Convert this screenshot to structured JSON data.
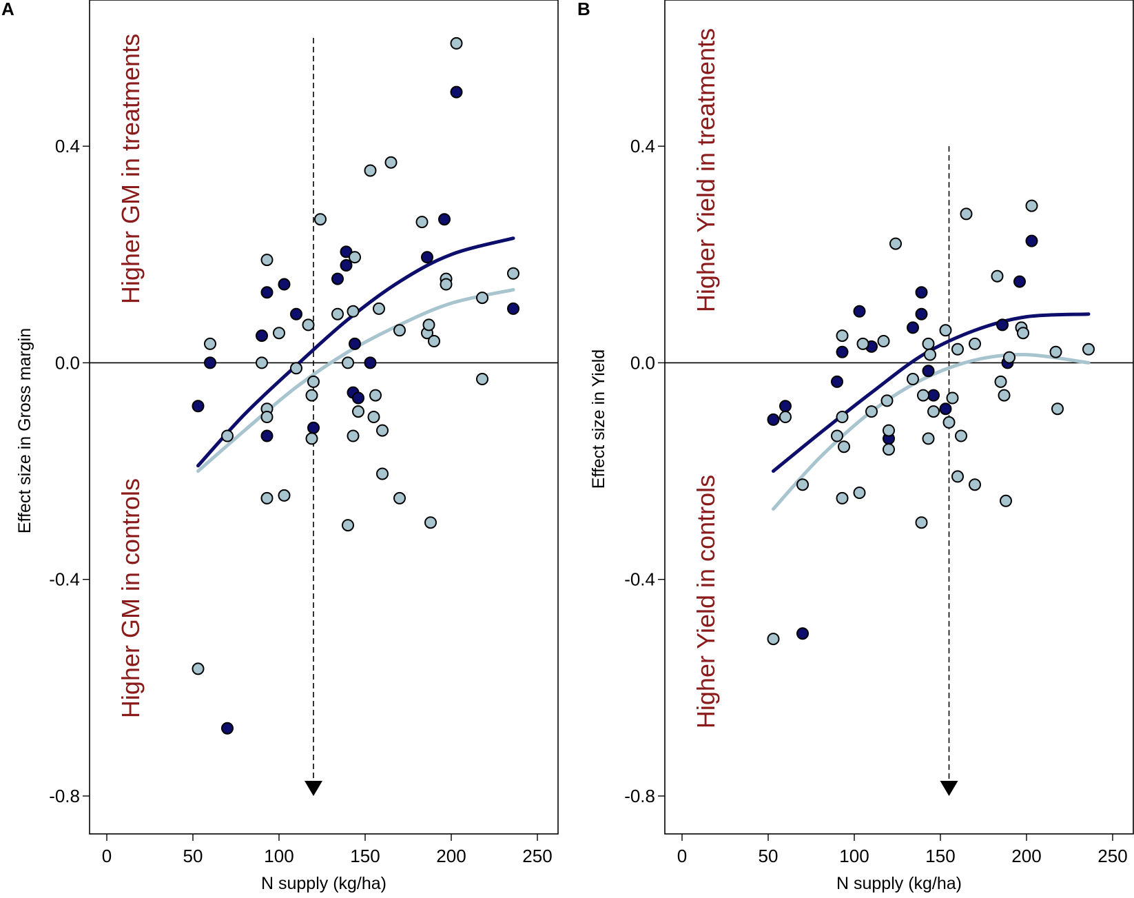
{
  "colors": {
    "dark": "#0d0d6b",
    "light": "#a7c4cf",
    "annotation": "#8b1a1a",
    "axis": "#000000"
  },
  "chart_data": [
    {
      "type": "scatter",
      "panel_label": "A",
      "xlabel": "N supply (kg/ha)",
      "ylabel": "Effect size in Gross margin",
      "xlim": [
        -10,
        262
      ],
      "ylim": [
        -0.87,
        0.67
      ],
      "x_ticks": [
        0,
        50,
        100,
        150,
        200,
        250
      ],
      "y_ticks": [
        0.4,
        0.0,
        -0.4,
        -0.8
      ],
      "y_tick_labels": [
        "0.4",
        "0.0",
        "-0.4",
        "-0.8"
      ],
      "zero_line": 0,
      "annotations": {
        "upper": "Higher GM in treatments",
        "lower": "Higher GM in controls"
      },
      "optimum_x": 120,
      "optimum_line_top": 0.6,
      "series": [
        {
          "name": "dark",
          "points": [
            [
              53,
              -0.08
            ],
            [
              60,
              0.0
            ],
            [
              70,
              -0.675
            ],
            [
              90,
              0.05
            ],
            [
              93,
              0.13
            ],
            [
              93,
              -0.135
            ],
            [
              103,
              0.145
            ],
            [
              110,
              0.09
            ],
            [
              120,
              -0.12
            ],
            [
              134,
              0.155
            ],
            [
              139,
              0.205
            ],
            [
              139,
              0.18
            ],
            [
              143,
              -0.055
            ],
            [
              144,
              0.035
            ],
            [
              146,
              -0.065
            ],
            [
              153,
              0.0
            ],
            [
              186,
              0.195
            ],
            [
              196,
              0.265
            ],
            [
              203,
              0.5
            ],
            [
              236,
              0.1
            ]
          ],
          "fit": [
            [
              53,
              -0.19
            ],
            [
              80,
              -0.095
            ],
            [
              110,
              -0.005
            ],
            [
              140,
              0.08
            ],
            [
              170,
              0.15
            ],
            [
              200,
              0.2
            ],
            [
              236,
              0.23
            ]
          ]
        },
        {
          "name": "light",
          "points": [
            [
              53,
              -0.565
            ],
            [
              60,
              0.035
            ],
            [
              70,
              -0.135
            ],
            [
              90,
              0.0
            ],
            [
              93,
              -0.085
            ],
            [
              93,
              -0.1
            ],
            [
              93,
              0.19
            ],
            [
              93,
              -0.25
            ],
            [
              100,
              0.055
            ],
            [
              103,
              -0.245
            ],
            [
              110,
              -0.01
            ],
            [
              117,
              0.07
            ],
            [
              119,
              -0.06
            ],
            [
              119,
              -0.14
            ],
            [
              120,
              -0.035
            ],
            [
              124,
              0.265
            ],
            [
              134,
              0.09
            ],
            [
              140,
              0.0
            ],
            [
              140,
              -0.3
            ],
            [
              143,
              0.095
            ],
            [
              143,
              -0.135
            ],
            [
              144,
              0.195
            ],
            [
              146,
              -0.09
            ],
            [
              153,
              0.355
            ],
            [
              155,
              -0.1
            ],
            [
              156,
              -0.06
            ],
            [
              158,
              0.1
            ],
            [
              160,
              -0.205
            ],
            [
              160,
              -0.125
            ],
            [
              165,
              0.37
            ],
            [
              170,
              0.06
            ],
            [
              170,
              -0.25
            ],
            [
              183,
              0.26
            ],
            [
              186,
              0.055
            ],
            [
              187,
              0.07
            ],
            [
              188,
              -0.295
            ],
            [
              190,
              0.04
            ],
            [
              197,
              0.155
            ],
            [
              197,
              0.145
            ],
            [
              203,
              0.59
            ],
            [
              218,
              0.12
            ],
            [
              218,
              -0.03
            ],
            [
              236,
              0.165
            ]
          ],
          "fit": [
            [
              53,
              -0.2
            ],
            [
              80,
              -0.125
            ],
            [
              110,
              -0.045
            ],
            [
              140,
              0.02
            ],
            [
              170,
              0.07
            ],
            [
              200,
              0.11
            ],
            [
              236,
              0.135
            ]
          ]
        }
      ]
    },
    {
      "type": "scatter",
      "panel_label": "B",
      "xlabel": "N supply (kg/ha)",
      "ylabel": "Effect size in Yield",
      "xlim": [
        -10,
        262
      ],
      "ylim": [
        -0.87,
        0.67
      ],
      "x_ticks": [
        0,
        50,
        100,
        150,
        200,
        250
      ],
      "y_ticks": [
        0.4,
        0.0,
        -0.4,
        -0.8
      ],
      "y_tick_labels": [
        "0.4",
        "0.0",
        "-0.4",
        "-0.8"
      ],
      "zero_line": 0,
      "annotations": {
        "upper": "Higher Yield in treatments",
        "lower": "Higher Yield in controls"
      },
      "optimum_x": 155,
      "optimum_line_top": 0.4,
      "series": [
        {
          "name": "dark",
          "points": [
            [
              53,
              -0.105
            ],
            [
              60,
              -0.08
            ],
            [
              70,
              -0.5
            ],
            [
              90,
              -0.035
            ],
            [
              93,
              0.02
            ],
            [
              103,
              0.095
            ],
            [
              110,
              0.03
            ],
            [
              120,
              -0.14
            ],
            [
              134,
              0.065
            ],
            [
              139,
              0.13
            ],
            [
              139,
              0.09
            ],
            [
              143,
              -0.015
            ],
            [
              146,
              -0.06
            ],
            [
              153,
              -0.085
            ],
            [
              186,
              0.07
            ],
            [
              189,
              0.0
            ],
            [
              196,
              0.15
            ],
            [
              203,
              0.225
            ]
          ],
          "fit": [
            [
              53,
              -0.2
            ],
            [
              80,
              -0.13
            ],
            [
              110,
              -0.055
            ],
            [
              140,
              0.015
            ],
            [
              170,
              0.06
            ],
            [
              200,
              0.085
            ],
            [
              236,
              0.09
            ]
          ]
        },
        {
          "name": "light",
          "points": [
            [
              53,
              -0.51
            ],
            [
              60,
              -0.1
            ],
            [
              70,
              -0.225
            ],
            [
              90,
              -0.135
            ],
            [
              93,
              -0.1
            ],
            [
              93,
              0.05
            ],
            [
              93,
              -0.25
            ],
            [
              94,
              -0.155
            ],
            [
              103,
              -0.24
            ],
            [
              105,
              0.035
            ],
            [
              110,
              -0.09
            ],
            [
              117,
              0.04
            ],
            [
              119,
              -0.07
            ],
            [
              120,
              -0.125
            ],
            [
              120,
              -0.16
            ],
            [
              124,
              0.22
            ],
            [
              134,
              -0.03
            ],
            [
              139,
              -0.295
            ],
            [
              140,
              -0.06
            ],
            [
              143,
              0.035
            ],
            [
              143,
              -0.14
            ],
            [
              144,
              0.015
            ],
            [
              146,
              -0.09
            ],
            [
              153,
              0.06
            ],
            [
              155,
              -0.11
            ],
            [
              157,
              -0.065
            ],
            [
              160,
              -0.21
            ],
            [
              160,
              0.025
            ],
            [
              162,
              -0.135
            ],
            [
              165,
              0.275
            ],
            [
              170,
              0.035
            ],
            [
              170,
              -0.225
            ],
            [
              183,
              0.16
            ],
            [
              185,
              -0.035
            ],
            [
              187,
              -0.06
            ],
            [
              188,
              -0.255
            ],
            [
              190,
              0.01
            ],
            [
              197,
              0.065
            ],
            [
              198,
              0.055
            ],
            [
              203,
              0.29
            ],
            [
              217,
              0.02
            ],
            [
              218,
              -0.085
            ],
            [
              236,
              0.025
            ]
          ],
          "fit": [
            [
              53,
              -0.27
            ],
            [
              80,
              -0.175
            ],
            [
              110,
              -0.09
            ],
            [
              140,
              -0.03
            ],
            [
              170,
              0.005
            ],
            [
              200,
              0.015
            ],
            [
              236,
              0.0
            ]
          ]
        }
      ]
    }
  ]
}
